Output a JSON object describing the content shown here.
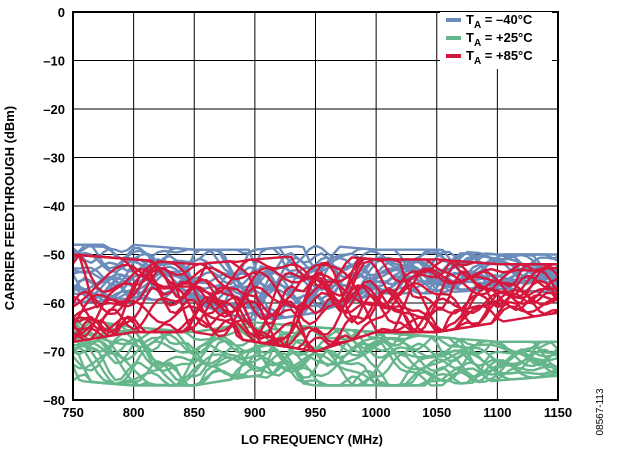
{
  "chart_data": {
    "type": "line",
    "xlabel": "LO FREQUENCY (MHz)",
    "ylabel": "CARRIER FEEDTHROUGH (dBm)",
    "xlim": [
      750,
      1150
    ],
    "ylim": [
      -80,
      0
    ],
    "x_ticks": [
      "750",
      "800",
      "850",
      "900",
      "950",
      "1000",
      "1050",
      "1100",
      "1150"
    ],
    "y_ticks": [
      "0",
      "–10",
      "–20",
      "–30",
      "–40",
      "–50",
      "–60",
      "–70",
      "–80"
    ],
    "grid": true,
    "legend_position": "top-right",
    "colors": {
      "cold": "#6b8cba",
      "room": "#66b68c",
      "hot": "#d6173c"
    },
    "series": [
      {
        "name_main": "T",
        "name_sub": "A",
        "name_rest": " = –40°C",
        "color": "#6b8cba",
        "x": [
          750,
          800,
          850,
          900,
          950,
          1000,
          1050,
          1100,
          1150
        ],
        "band": [
          [
            -48,
            -60
          ],
          [
            -48,
            -59
          ],
          [
            -49,
            -60
          ],
          [
            -49,
            -64
          ],
          [
            -48,
            -62
          ],
          [
            -49,
            -58
          ],
          [
            -49,
            -58
          ],
          [
            -50,
            -57
          ],
          [
            -50,
            -58
          ]
        ]
      },
      {
        "name_main": "T",
        "name_sub": "A",
        "name_rest": " = +25°C",
        "color": "#66b68c",
        "x": [
          750,
          800,
          850,
          900,
          950,
          1000,
          1050,
          1100,
          1150
        ],
        "band": [
          [
            -63,
            -76
          ],
          [
            -65,
            -77
          ],
          [
            -66,
            -77
          ],
          [
            -64,
            -75
          ],
          [
            -65,
            -77
          ],
          [
            -66,
            -77
          ],
          [
            -67,
            -77
          ],
          [
            -68,
            -76
          ],
          [
            -68,
            -75
          ]
        ]
      },
      {
        "name_main": "T",
        "name_sub": "A",
        "name_rest": " = +85°C",
        "color": "#d6173c",
        "x": [
          750,
          800,
          850,
          900,
          950,
          1000,
          1050,
          1100,
          1150
        ],
        "band": [
          [
            -50,
            -68
          ],
          [
            -51,
            -66
          ],
          [
            -52,
            -66
          ],
          [
            -51,
            -68
          ],
          [
            -50,
            -70
          ],
          [
            -51,
            -66
          ],
          [
            -51,
            -66
          ],
          [
            -52,
            -64
          ],
          [
            -52,
            -62
          ]
        ]
      }
    ]
  },
  "figure_id": "08567-113"
}
